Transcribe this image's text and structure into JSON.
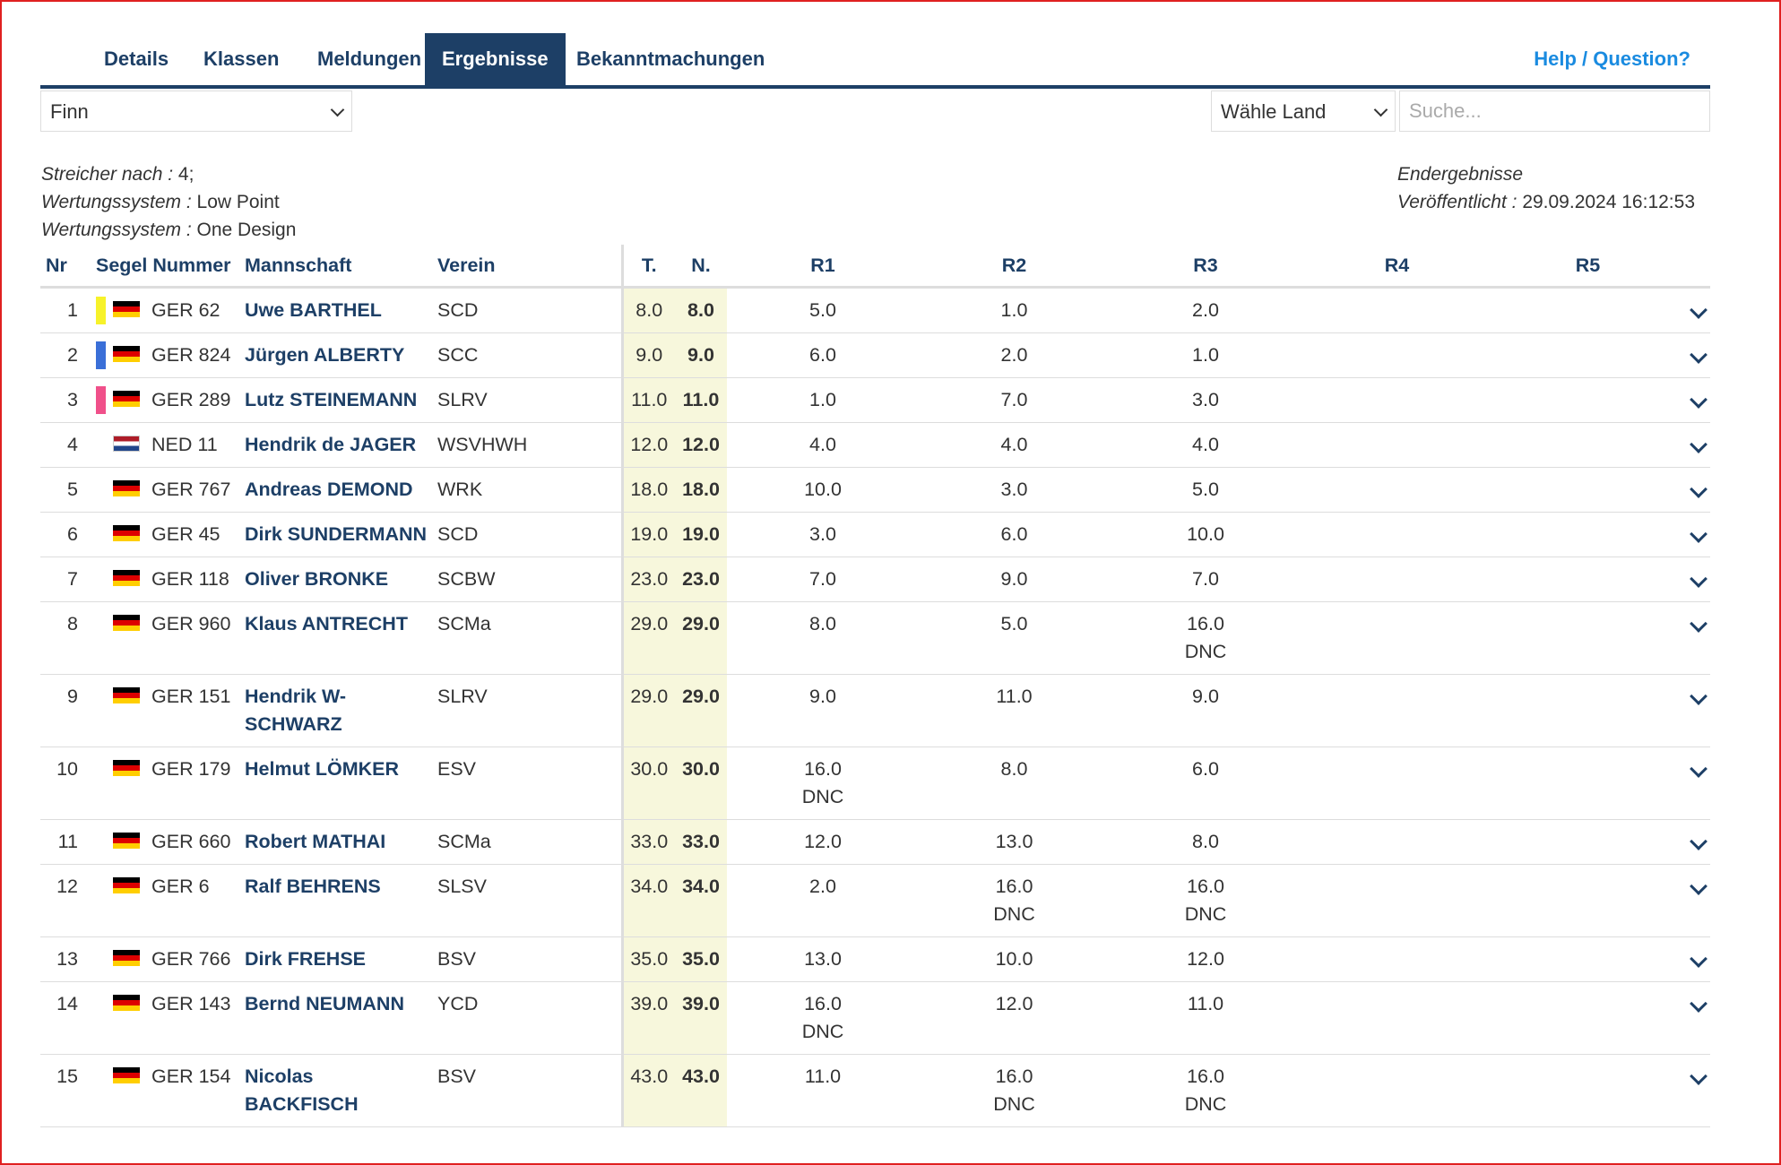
{
  "tabs": [
    {
      "label": "Details"
    },
    {
      "label": "Klassen"
    },
    {
      "label": "Meldungen"
    },
    {
      "label": "Ergebnisse",
      "active": true
    },
    {
      "label": "Bekanntmachungen"
    }
  ],
  "help_link": "Help / Question?",
  "class_select": {
    "value": "Finn"
  },
  "country_select": {
    "value": "Wähle Land"
  },
  "search": {
    "placeholder": "Suche..."
  },
  "info": {
    "discard_label": "Streicher nach :",
    "discard_value": "4;",
    "scoring_label": "Wertungssystem :",
    "scoring_value": "Low Point",
    "scoring2_label": "Wertungssystem :",
    "scoring2_value": "One Design",
    "status": "Endergebnisse",
    "published_label": "Veröffentlicht :",
    "published_value": "29.09.2024 16:12:53"
  },
  "columns": [
    "Nr",
    "Segel Nummer",
    "Mannschaft",
    "Verein",
    "T.",
    "N.",
    "R1",
    "R2",
    "R3",
    "R4",
    "R5"
  ],
  "colors": {
    "primary": "#1d3f66",
    "link": "#1a8be0",
    "highlight": "#f7f7dc",
    "marker_yellow": "#f7f22a",
    "marker_blue": "#3a6fd8",
    "marker_pink": "#f0508a"
  },
  "rows": [
    {
      "nr": "1",
      "marker": "#f7f22a",
      "country": "ger",
      "sail": "GER 62",
      "name": "Uwe BARTHEL",
      "club": "SCD",
      "total": "8.0",
      "net": "8.0",
      "r1": "5.0",
      "r2": "1.0",
      "r3": "2.0"
    },
    {
      "nr": "2",
      "marker": "#3a6fd8",
      "country": "ger",
      "sail": "GER 824",
      "name": "Jürgen ALBERTY",
      "club": "SCC",
      "total": "9.0",
      "net": "9.0",
      "r1": "6.0",
      "r2": "2.0",
      "r3": "1.0"
    },
    {
      "nr": "3",
      "marker": "#f0508a",
      "country": "ger",
      "sail": "GER 289",
      "name": "Lutz STEINEMANN",
      "club": "SLRV",
      "total": "11.0",
      "net": "11.0",
      "r1": "1.0",
      "r2": "7.0",
      "r3": "3.0"
    },
    {
      "nr": "4",
      "marker": "",
      "country": "ned",
      "sail": "NED 11",
      "name": "Hendrik de JAGER",
      "club": "WSVHWH",
      "total": "12.0",
      "net": "12.0",
      "r1": "4.0",
      "r2": "4.0",
      "r3": "4.0"
    },
    {
      "nr": "5",
      "marker": "",
      "country": "ger",
      "sail": "GER 767",
      "name": "Andreas DEMOND",
      "club": "WRK",
      "total": "18.0",
      "net": "18.0",
      "r1": "10.0",
      "r2": "3.0",
      "r3": "5.0"
    },
    {
      "nr": "6",
      "marker": "",
      "country": "ger",
      "sail": "GER 45",
      "name": "Dirk SUNDERMANN",
      "club": "SCD",
      "total": "19.0",
      "net": "19.0",
      "r1": "3.0",
      "r2": "6.0",
      "r3": "10.0"
    },
    {
      "nr": "7",
      "marker": "",
      "country": "ger",
      "sail": "GER 118",
      "name": "Oliver BRONKE",
      "club": "SCBW",
      "total": "23.0",
      "net": "23.0",
      "r1": "7.0",
      "r2": "9.0",
      "r3": "7.0"
    },
    {
      "nr": "8",
      "marker": "",
      "country": "ger",
      "sail": "GER 960",
      "name": "Klaus ANTRECHT",
      "club": "SCMa",
      "total": "29.0",
      "net": "29.0",
      "r1": "8.0",
      "r2": "5.0",
      "r3": "16.0",
      "r3_code": "DNC"
    },
    {
      "nr": "9",
      "marker": "",
      "country": "ger",
      "sail": "GER 151",
      "name": "Hendrik W-SCHWARZ",
      "club": "SLRV",
      "total": "29.0",
      "net": "29.0",
      "r1": "9.0",
      "r2": "11.0",
      "r3": "9.0"
    },
    {
      "nr": "10",
      "marker": "",
      "country": "ger",
      "sail": "GER 179",
      "name": "Helmut LÖMKER",
      "club": "ESV",
      "total": "30.0",
      "net": "30.0",
      "r1": "16.0",
      "r1_code": "DNC",
      "r2": "8.0",
      "r3": "6.0"
    },
    {
      "nr": "11",
      "marker": "",
      "country": "ger",
      "sail": "GER 660",
      "name": "Robert MATHAI",
      "club": "SCMa",
      "total": "33.0",
      "net": "33.0",
      "r1": "12.0",
      "r2": "13.0",
      "r3": "8.0"
    },
    {
      "nr": "12",
      "marker": "",
      "country": "ger",
      "sail": "GER 6",
      "name": "Ralf BEHRENS",
      "club": "SLSV",
      "total": "34.0",
      "net": "34.0",
      "r1": "2.0",
      "r2": "16.0",
      "r2_code": "DNC",
      "r3": "16.0",
      "r3_code": "DNC"
    },
    {
      "nr": "13",
      "marker": "",
      "country": "ger",
      "sail": "GER 766",
      "name": "Dirk FREHSE",
      "club": "BSV",
      "total": "35.0",
      "net": "35.0",
      "r1": "13.0",
      "r2": "10.0",
      "r3": "12.0"
    },
    {
      "nr": "14",
      "marker": "",
      "country": "ger",
      "sail": "GER 143",
      "name": "Bernd NEUMANN",
      "club": "YCD",
      "total": "39.0",
      "net": "39.0",
      "r1": "16.0",
      "r1_code": "DNC",
      "r2": "12.0",
      "r3": "11.0"
    },
    {
      "nr": "15",
      "marker": "",
      "country": "ger",
      "sail": "GER 154",
      "name": "Nicolas BACKFISCH",
      "club": "BSV",
      "total": "43.0",
      "net": "43.0",
      "r1": "11.0",
      "r2": "16.0",
      "r2_code": "DNC",
      "r3": "16.0",
      "r3_code": "DNC"
    }
  ]
}
